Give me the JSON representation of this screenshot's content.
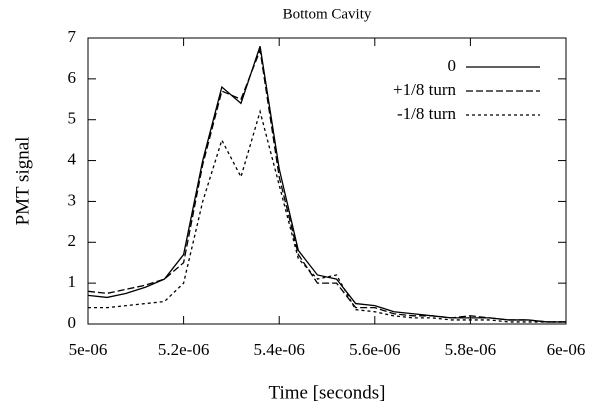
{
  "chart_data": {
    "type": "line",
    "title": "Bottom Cavity",
    "xlabel": "Time [seconds]",
    "ylabel": "PMT signal",
    "x": [
      5e-06,
      5.04e-06,
      5.08e-06,
      5.12e-06,
      5.16e-06,
      5.2e-06,
      5.24e-06,
      5.28e-06,
      5.32e-06,
      5.36e-06,
      5.4e-06,
      5.44e-06,
      5.48e-06,
      5.52e-06,
      5.56e-06,
      5.6e-06,
      5.64e-06,
      5.68e-06,
      5.72e-06,
      5.76e-06,
      5.8e-06,
      5.84e-06,
      5.88e-06,
      5.92e-06,
      5.96e-06,
      6e-06
    ],
    "series": [
      {
        "name": "0",
        "color": "#000000",
        "dash": "none",
        "values": [
          0.7,
          0.65,
          0.75,
          0.9,
          1.1,
          1.7,
          4.0,
          5.8,
          5.4,
          6.8,
          3.8,
          1.8,
          1.2,
          1.1,
          0.5,
          0.45,
          0.3,
          0.25,
          0.2,
          0.15,
          0.15,
          0.15,
          0.1,
          0.1,
          0.05,
          0.05
        ]
      },
      {
        "name": "+1/8 turn",
        "color": "#000000",
        "dash": "7,3",
        "values": [
          0.8,
          0.75,
          0.85,
          0.95,
          1.1,
          1.5,
          3.9,
          5.7,
          5.5,
          6.7,
          3.6,
          1.7,
          1.0,
          1.0,
          0.4,
          0.4,
          0.25,
          0.2,
          0.2,
          0.15,
          0.2,
          0.15,
          0.1,
          0.1,
          0.05,
          0.05
        ]
      },
      {
        "name": "-1/8 turn",
        "color": "#000000",
        "dash": "3,3",
        "values": [
          0.4,
          0.4,
          0.45,
          0.5,
          0.55,
          1.0,
          3.0,
          4.5,
          3.6,
          5.2,
          3.4,
          1.6,
          1.1,
          1.2,
          0.35,
          0.3,
          0.2,
          0.15,
          0.15,
          0.1,
          0.1,
          0.1,
          0.05,
          0.05,
          0.05,
          0.05
        ]
      }
    ],
    "xlim": [
      5e-06,
      6e-06
    ],
    "xticks": [
      {
        "value": 5e-06,
        "label": "5e-06"
      },
      {
        "value": 5.2e-06,
        "label": "5.2e-06"
      },
      {
        "value": 5.4e-06,
        "label": "5.4e-06"
      },
      {
        "value": 5.6e-06,
        "label": "5.6e-06"
      },
      {
        "value": 5.8e-06,
        "label": "5.8e-06"
      },
      {
        "value": 6e-06,
        "label": "6e-06"
      }
    ],
    "ylim": [
      0,
      7
    ],
    "yticks": [
      0,
      1,
      2,
      3,
      4,
      5,
      6,
      7
    ],
    "legend": "top-right"
  }
}
